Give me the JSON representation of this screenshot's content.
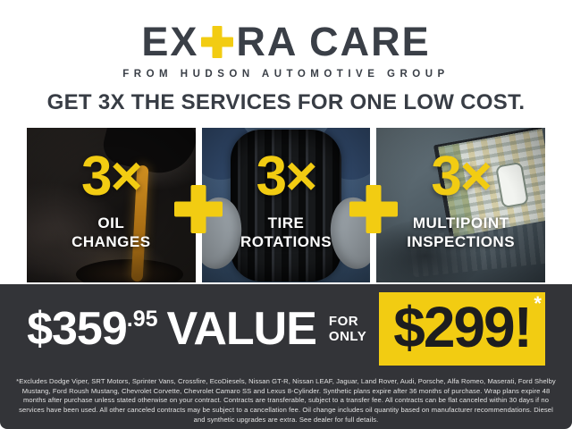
{
  "brand": {
    "logo_prefix": "EX",
    "logo_suffix": "RA CARE",
    "tagline": "FROM HUDSON AUTOMOTIVE GROUP"
  },
  "headline": "GET 3X THE SERVICES FOR ONE LOW COST.",
  "panels": [
    {
      "multiplier": "3×",
      "label": "OIL\nCHANGES",
      "photo": "oil-being-poured"
    },
    {
      "multiplier": "3×",
      "label": "TIRE\nROTATIONS",
      "photo": "mechanic-holding-tire"
    },
    {
      "multiplier": "3×",
      "label": "MULTIPOINT\nINSPECTIONS",
      "photo": "laptop-inspection-software"
    }
  ],
  "offer": {
    "value_price": "$359",
    "value_cents": ".95",
    "value_label": "VALUE",
    "for_word": "FOR",
    "only_word": "ONLY",
    "sale_price": "$299!",
    "footnote_marker": "*"
  },
  "disclaimer": "*Excludes Dodge Viper, SRT Motors, Sprinter Vans, Crossfire, EcoDiesels, Nissan GT-R, Nissan LEAF, Jaguar, Land Rover, Audi, Porsche, Alfa Romeo, Maserati, Ford Shelby Mustang, Ford Roush Mustang, Chevrolet Corvette, Chevrolet Camaro SS and Lexus 8-Cylinder. Synthetic plans expire after 36 months of purchase. Wrap plans expire 48 months after purchase unless stated otherwise on your contract. Contracts are transferable, subject to a transfer fee. All contracts can be flat canceled within 30 days if no services have been used. All other canceled contracts may be subject to a cancellation fee. Oil change includes oil quantity based on manufacturer recommendations. Diesel and synthetic upgrades are extra. See dealer for full details.",
  "colors": {
    "accent_yellow": "#F2CC12",
    "bar_charcoal": "#333438",
    "text_dark": "#3A3F47",
    "text_white": "#FFFFFF"
  }
}
